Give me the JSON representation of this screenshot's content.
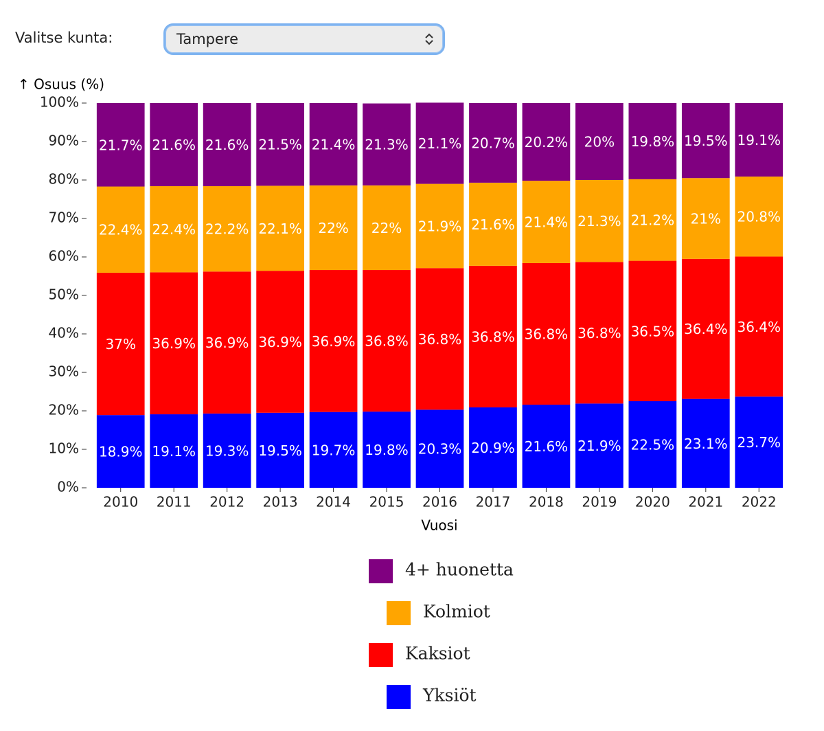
{
  "filter": {
    "label": "Valitse kunta:",
    "value": "Tampere"
  },
  "chart_data": {
    "type": "stacked_bar",
    "y_label": "↑ Osuus (%)",
    "x_label": "Vuosi",
    "categories": [
      "2010",
      "2011",
      "2012",
      "2013",
      "2014",
      "2015",
      "2016",
      "2017",
      "2018",
      "2019",
      "2020",
      "2021",
      "2022"
    ],
    "ylim": [
      0,
      100
    ],
    "yticks": [
      {
        "value": 0,
        "label": "0%"
      },
      {
        "value": 10,
        "label": "10%"
      },
      {
        "value": 20,
        "label": "20%"
      },
      {
        "value": 30,
        "label": "30%"
      },
      {
        "value": 40,
        "label": "40%"
      },
      {
        "value": 50,
        "label": "50%"
      },
      {
        "value": 60,
        "label": "60%"
      },
      {
        "value": 70,
        "label": "70%"
      },
      {
        "value": 80,
        "label": "80%"
      },
      {
        "value": 90,
        "label": "90%"
      },
      {
        "value": 100,
        "label": "100%"
      }
    ],
    "series": [
      {
        "name": "Yksiöt",
        "color": "#0000ff",
        "values": [
          18.9,
          19.1,
          19.3,
          19.5,
          19.7,
          19.8,
          20.3,
          20.9,
          21.6,
          21.9,
          22.5,
          23.1,
          23.7
        ],
        "value_labels": [
          "18.9%",
          "19.1%",
          "19.3%",
          "19.5%",
          "19.7%",
          "19.8%",
          "20.3%",
          "20.9%",
          "21.6%",
          "21.9%",
          "22.5%",
          "23.1%",
          "23.7%"
        ]
      },
      {
        "name": "Kaksiot",
        "color": "#ff0000",
        "values": [
          37,
          36.9,
          36.9,
          36.9,
          36.9,
          36.8,
          36.8,
          36.8,
          36.8,
          36.8,
          36.5,
          36.4,
          36.4
        ],
        "value_labels": [
          "37%",
          "36.9%",
          "36.9%",
          "36.9%",
          "36.9%",
          "36.8%",
          "36.8%",
          "36.8%",
          "36.8%",
          "36.8%",
          "36.5%",
          "36.4%",
          "36.4%"
        ]
      },
      {
        "name": "Kolmiot",
        "color": "#ffa500",
        "values": [
          22.4,
          22.4,
          22.2,
          22.1,
          22,
          22,
          21.9,
          21.6,
          21.4,
          21.3,
          21.2,
          21,
          20.8
        ],
        "value_labels": [
          "22.4%",
          "22.4%",
          "22.2%",
          "22.1%",
          "22%",
          "22%",
          "21.9%",
          "21.6%",
          "21.4%",
          "21.3%",
          "21.2%",
          "21%",
          "20.8%"
        ]
      },
      {
        "name": "4+ huonetta",
        "color": "#800080",
        "values": [
          21.7,
          21.6,
          21.6,
          21.5,
          21.4,
          21.3,
          21.1,
          20.7,
          20.2,
          20,
          19.8,
          19.5,
          19.1
        ],
        "value_labels": [
          "21.7%",
          "21.6%",
          "21.6%",
          "21.5%",
          "21.4%",
          "21.3%",
          "21.1%",
          "20.7%",
          "20.2%",
          "20%",
          "19.8%",
          "19.5%",
          "19.1%"
        ]
      }
    ]
  }
}
